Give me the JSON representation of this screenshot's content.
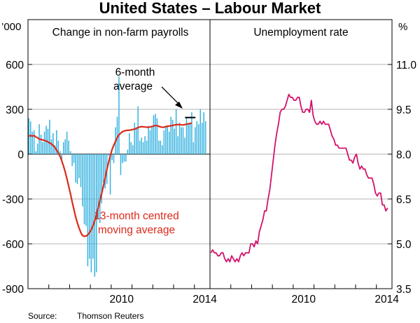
{
  "title": "United States – Labour Market",
  "source_label": "Source:",
  "source_text": "Thomson Reuters",
  "colors": {
    "bar": "#3ab4e0",
    "avg": "#dd2a1b",
    "unemp": "#d3136b",
    "frame": "#000000",
    "grid": "#9a9a9a"
  },
  "chart_data": [
    {
      "type": "bar",
      "title": "Change in non-farm payrolls",
      "ylabel": "’000",
      "ylim": [
        -900,
        900
      ],
      "yticks": [
        -900,
        -600,
        -300,
        0,
        300,
        600
      ],
      "xlim": [
        2006.0,
        2014.75
      ],
      "xticks": [
        2010,
        2014
      ],
      "series": [
        {
          "name": "Monthly change in non-farm payrolls",
          "start": 2006.0,
          "step": 0.0833,
          "values": [
            240,
            220,
            150,
            160,
            20,
            70,
            200,
            130,
            80,
            150,
            190,
            170,
            230,
            100,
            140,
            60,
            160,
            90,
            20,
            -40,
            80,
            100,
            150,
            90,
            20,
            -80,
            -60,
            -190,
            -200,
            -160,
            -220,
            -350,
            -470,
            -480,
            -750,
            -700,
            -790,
            -700,
            -820,
            -790,
            -430,
            -460,
            -330,
            -190,
            -230,
            -200,
            -10,
            -270,
            -40,
            -60,
            180,
            250,
            520,
            -140,
            -60,
            -50,
            -50,
            30,
            140,
            80,
            60,
            210,
            180,
            320,
            90,
            110,
            80,
            120,
            90,
            190,
            160,
            190,
            260,
            270,
            240,
            90,
            90,
            60,
            160,
            190,
            190,
            150,
            250,
            230,
            170,
            300,
            120,
            210,
            180,
            180,
            110,
            240,
            200,
            210,
            280,
            80,
            180,
            220,
            200,
            300,
            210,
            280,
            220
          ]
        },
        {
          "name": "13-month centred moving average",
          "start": 2006.0,
          "step": 0.0833,
          "values": [
            120,
            125,
            120,
            125,
            115,
            110,
            100,
            98,
            95,
            92,
            88,
            82,
            75,
            68,
            58,
            45,
            28,
            8,
            -15,
            -45,
            -80,
            -120,
            -165,
            -215,
            -265,
            -320,
            -370,
            -420,
            -460,
            -495,
            -525,
            -545,
            -550,
            -548,
            -540,
            -525,
            -505,
            -480,
            -445,
            -405,
            -360,
            -310,
            -265,
            -215,
            -160,
            -105,
            -55,
            -10,
            30,
            60,
            85,
            110,
            130,
            140,
            150,
            155,
            158,
            160,
            160,
            162,
            165,
            168,
            172,
            178,
            182,
            184,
            183,
            182,
            180,
            180,
            182,
            185,
            188,
            192,
            190,
            186,
            182,
            180,
            180,
            184,
            187,
            188,
            190,
            192,
            195,
            197,
            198,
            198,
            196,
            195,
            198,
            200,
            203,
            205,
            208
          ]
        },
        {
          "name": "6-month average",
          "x_range": [
            2013.55,
            2014.05
          ],
          "value": 245
        }
      ],
      "annotations": [
        {
          "text": "6-month",
          "line": 1
        },
        {
          "text": "average",
          "line": 2
        },
        {
          "text": "13-month centred",
          "line": 1
        },
        {
          "text": "moving average",
          "line": 2
        }
      ]
    },
    {
      "type": "line",
      "title": "Unemployment rate",
      "ylabel": "%",
      "ylim": [
        3.5,
        12.5
      ],
      "yticks": [
        3.5,
        5.0,
        6.5,
        8.0,
        9.5,
        11.0
      ],
      "ytick_labels": [
        "3.5",
        "5.0",
        "6.5",
        "8.0",
        "9.5",
        "11.0"
      ],
      "xlim": [
        2006.0,
        2014.75
      ],
      "xticks": [
        2010,
        2014
      ],
      "series": [
        {
          "name": "Unemployment rate",
          "start": 2006.0,
          "step": 0.0833,
          "values": [
            4.7,
            4.8,
            4.7,
            4.7,
            4.6,
            4.6,
            4.7,
            4.7,
            4.5,
            4.4,
            4.5,
            4.4,
            4.6,
            4.5,
            4.4,
            4.5,
            4.4,
            4.6,
            4.7,
            4.6,
            4.7,
            4.7,
            4.7,
            5.0,
            5.0,
            4.9,
            5.1,
            5.0,
            5.4,
            5.6,
            5.8,
            6.1,
            6.1,
            6.5,
            6.8,
            7.3,
            7.8,
            8.3,
            8.7,
            9.0,
            9.4,
            9.5,
            9.5,
            9.6,
            9.8,
            10.0,
            9.9,
            9.9,
            9.8,
            9.8,
            9.9,
            9.9,
            9.6,
            9.4,
            9.4,
            9.5,
            9.5,
            9.4,
            9.8,
            9.3,
            9.1,
            9.0,
            9.0,
            9.1,
            9.0,
            9.1,
            9.0,
            9.0,
            9.0,
            8.8,
            8.6,
            8.5,
            8.3,
            8.3,
            8.2,
            8.2,
            8.2,
            8.2,
            8.2,
            8.0,
            7.8,
            7.8,
            7.7,
            7.9,
            8.0,
            7.7,
            7.5,
            7.6,
            7.5,
            7.5,
            7.3,
            7.2,
            7.2,
            7.2,
            7.0,
            6.7,
            6.6,
            6.7,
            6.7,
            6.3,
            6.3,
            6.1,
            6.2
          ]
        }
      ]
    }
  ]
}
